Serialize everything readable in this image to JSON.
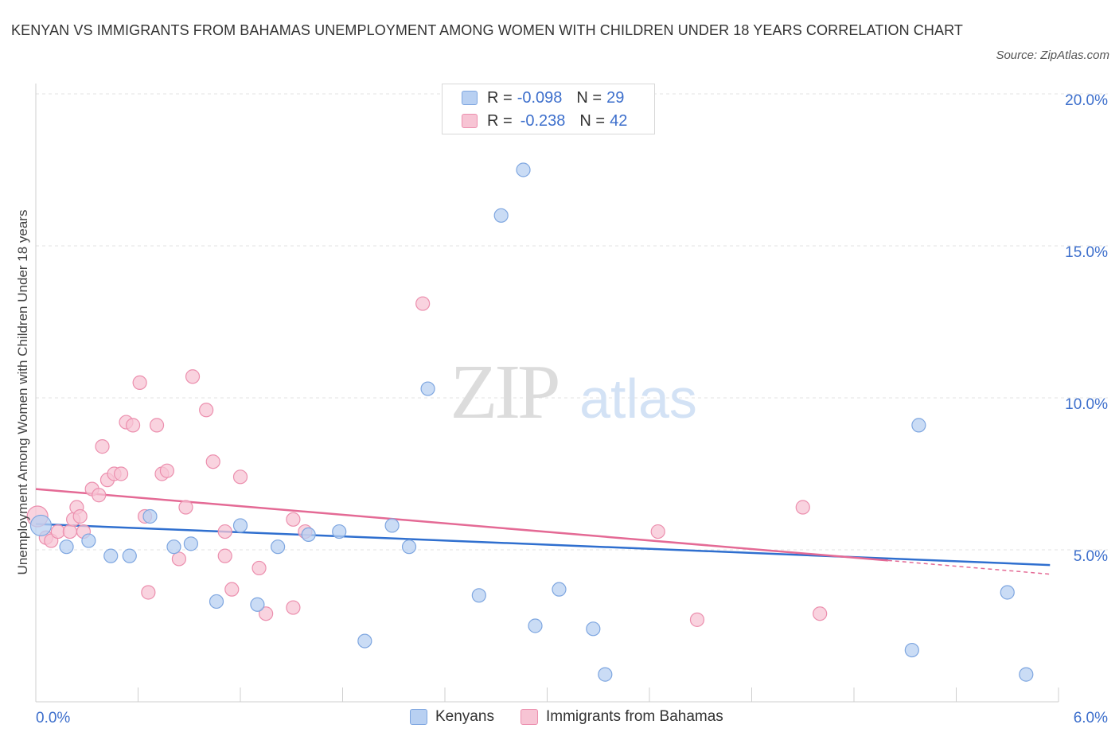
{
  "title": "KENYAN VS IMMIGRANTS FROM BAHAMAS UNEMPLOYMENT AMONG WOMEN WITH CHILDREN UNDER 18 YEARS CORRELATION CHART",
  "source": "Source: ZipAtlas.com",
  "watermark": {
    "zip": "ZIP",
    "atlas": "atlas"
  },
  "legend": {
    "r_label": "R =",
    "n_label": "N =",
    "kenyans": {
      "r": "-0.098",
      "n": "29"
    },
    "bahamas": {
      "r": "-0.238",
      "n": "42"
    }
  },
  "colors": {
    "kenyans_fill": "#b8d0f2",
    "kenyans_stroke": "#7ea6e0",
    "kenyans_line": "#2f6fcf",
    "bahamas_fill": "#f7c4d4",
    "bahamas_stroke": "#ec8fae",
    "bahamas_line": "#e46a95",
    "tick_label": "#3d6fcc",
    "grid": "#e3e3e3"
  },
  "chart_data": {
    "type": "scatter",
    "title": "KENYAN VS IMMIGRANTS FROM BAHAMAS UNEMPLOYMENT AMONG WOMEN WITH CHILDREN UNDER 18 YEARS CORRELATION CHART",
    "xlabel": "",
    "ylabel": "Unemployment Among Women with Children Under 18 years",
    "xlim": [
      0,
      6
    ],
    "ylim": [
      0,
      20
    ],
    "x_tick_labels": [
      "0.0%",
      "6.0%"
    ],
    "y_ticks": [
      5,
      10,
      15,
      20
    ],
    "y_tick_labels": [
      "5.0%",
      "10.0%",
      "15.0%",
      "20.0%"
    ],
    "grid": "horizontal dashed",
    "legend_position": "top-center",
    "series": [
      {
        "name": "Kenyans",
        "points": [
          [
            0.03,
            5.8
          ],
          [
            0.18,
            5.1
          ],
          [
            0.31,
            5.3
          ],
          [
            0.44,
            4.8
          ],
          [
            0.55,
            4.8
          ],
          [
            0.67,
            6.1
          ],
          [
            0.81,
            5.1
          ],
          [
            0.91,
            5.2
          ],
          [
            1.06,
            3.3
          ],
          [
            1.2,
            5.8
          ],
          [
            1.3,
            3.2
          ],
          [
            1.42,
            5.1
          ],
          [
            1.6,
            5.5
          ],
          [
            1.78,
            5.6
          ],
          [
            1.93,
            2.0
          ],
          [
            2.09,
            5.8
          ],
          [
            2.19,
            5.1
          ],
          [
            2.3,
            10.3
          ],
          [
            2.6,
            3.5
          ],
          [
            2.73,
            16.0
          ],
          [
            2.86,
            17.5
          ],
          [
            2.93,
            2.5
          ],
          [
            3.07,
            3.7
          ],
          [
            3.27,
            2.4
          ],
          [
            3.34,
            0.9
          ],
          [
            5.18,
            9.1
          ],
          [
            5.14,
            1.7
          ],
          [
            5.7,
            3.6
          ],
          [
            5.81,
            0.9
          ]
        ],
        "trend": [
          [
            0,
            5.85
          ],
          [
            5.95,
            4.5
          ]
        ]
      },
      {
        "name": "Immigrants from Bahamas",
        "points": [
          [
            0.01,
            6.1
          ],
          [
            0.06,
            5.4
          ],
          [
            0.09,
            5.3
          ],
          [
            0.13,
            5.6
          ],
          [
            0.2,
            5.6
          ],
          [
            0.22,
            6.0
          ],
          [
            0.24,
            6.4
          ],
          [
            0.26,
            6.1
          ],
          [
            0.28,
            5.6
          ],
          [
            0.33,
            7.0
          ],
          [
            0.37,
            6.8
          ],
          [
            0.39,
            8.4
          ],
          [
            0.42,
            7.3
          ],
          [
            0.46,
            7.5
          ],
          [
            0.5,
            7.5
          ],
          [
            0.53,
            9.2
          ],
          [
            0.57,
            9.1
          ],
          [
            0.61,
            10.5
          ],
          [
            0.64,
            6.1
          ],
          [
            0.66,
            3.6
          ],
          [
            0.71,
            9.1
          ],
          [
            0.74,
            7.5
          ],
          [
            0.77,
            7.6
          ],
          [
            0.84,
            4.7
          ],
          [
            0.88,
            6.4
          ],
          [
            0.92,
            10.7
          ],
          [
            1.0,
            9.6
          ],
          [
            1.04,
            7.9
          ],
          [
            1.11,
            5.6
          ],
          [
            1.11,
            4.8
          ],
          [
            1.15,
            3.7
          ],
          [
            1.2,
            7.4
          ],
          [
            1.31,
            4.4
          ],
          [
            1.35,
            2.9
          ],
          [
            1.51,
            3.1
          ],
          [
            1.51,
            6.0
          ],
          [
            1.58,
            5.6
          ],
          [
            2.27,
            13.1
          ],
          [
            3.65,
            5.6
          ],
          [
            3.88,
            2.7
          ],
          [
            4.5,
            6.4
          ],
          [
            4.6,
            2.9
          ]
        ],
        "trend": [
          [
            0,
            7.0
          ],
          [
            5.0,
            4.65
          ]
        ],
        "trend_dashed_extension": [
          [
            5.0,
            4.65
          ],
          [
            5.95,
            4.2
          ]
        ]
      }
    ]
  },
  "bottom_legend": [
    "Kenyans",
    "Immigrants from Bahamas"
  ]
}
